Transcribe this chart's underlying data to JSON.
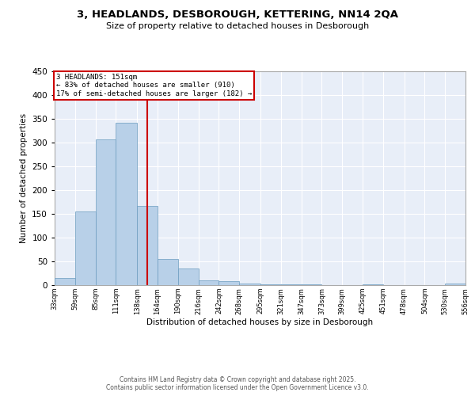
{
  "title_line1": "3, HEADLANDS, DESBOROUGH, KETTERING, NN14 2QA",
  "title_line2": "Size of property relative to detached houses in Desborough",
  "xlabel": "Distribution of detached houses by size in Desborough",
  "ylabel": "Number of detached properties",
  "bar_color": "#b8d0e8",
  "bar_edge_color": "#6a9bbf",
  "background_color": "#e8eef8",
  "grid_color": "#ffffff",
  "annotation_box_color": "#cc0000",
  "vline_color": "#cc0000",
  "annotation_text": "3 HEADLANDS: 151sqm\n← 83% of detached houses are smaller (910)\n17% of semi-detached houses are larger (182) →",
  "property_size": 151,
  "bin_edges": [
    33,
    59,
    85,
    111,
    138,
    164,
    190,
    216,
    242,
    268,
    295,
    321,
    347,
    373,
    399,
    425,
    451,
    478,
    504,
    530,
    556
  ],
  "bin_labels": [
    "33sqm",
    "59sqm",
    "85sqm",
    "111sqm",
    "138sqm",
    "164sqm",
    "190sqm",
    "216sqm",
    "242sqm",
    "268sqm",
    "295sqm",
    "321sqm",
    "347sqm",
    "373sqm",
    "399sqm",
    "425sqm",
    "451sqm",
    "478sqm",
    "504sqm",
    "530sqm",
    "556sqm"
  ],
  "counts": [
    15,
    155,
    307,
    341,
    167,
    55,
    35,
    10,
    8,
    4,
    2,
    1,
    1,
    0,
    0,
    1,
    0,
    0,
    0,
    3
  ],
  "ylim": [
    0,
    450
  ],
  "yticks": [
    0,
    50,
    100,
    150,
    200,
    250,
    300,
    350,
    400,
    450
  ],
  "footer_line1": "Contains HM Land Registry data © Crown copyright and database right 2025.",
  "footer_line2": "Contains public sector information licensed under the Open Government Licence v3.0."
}
